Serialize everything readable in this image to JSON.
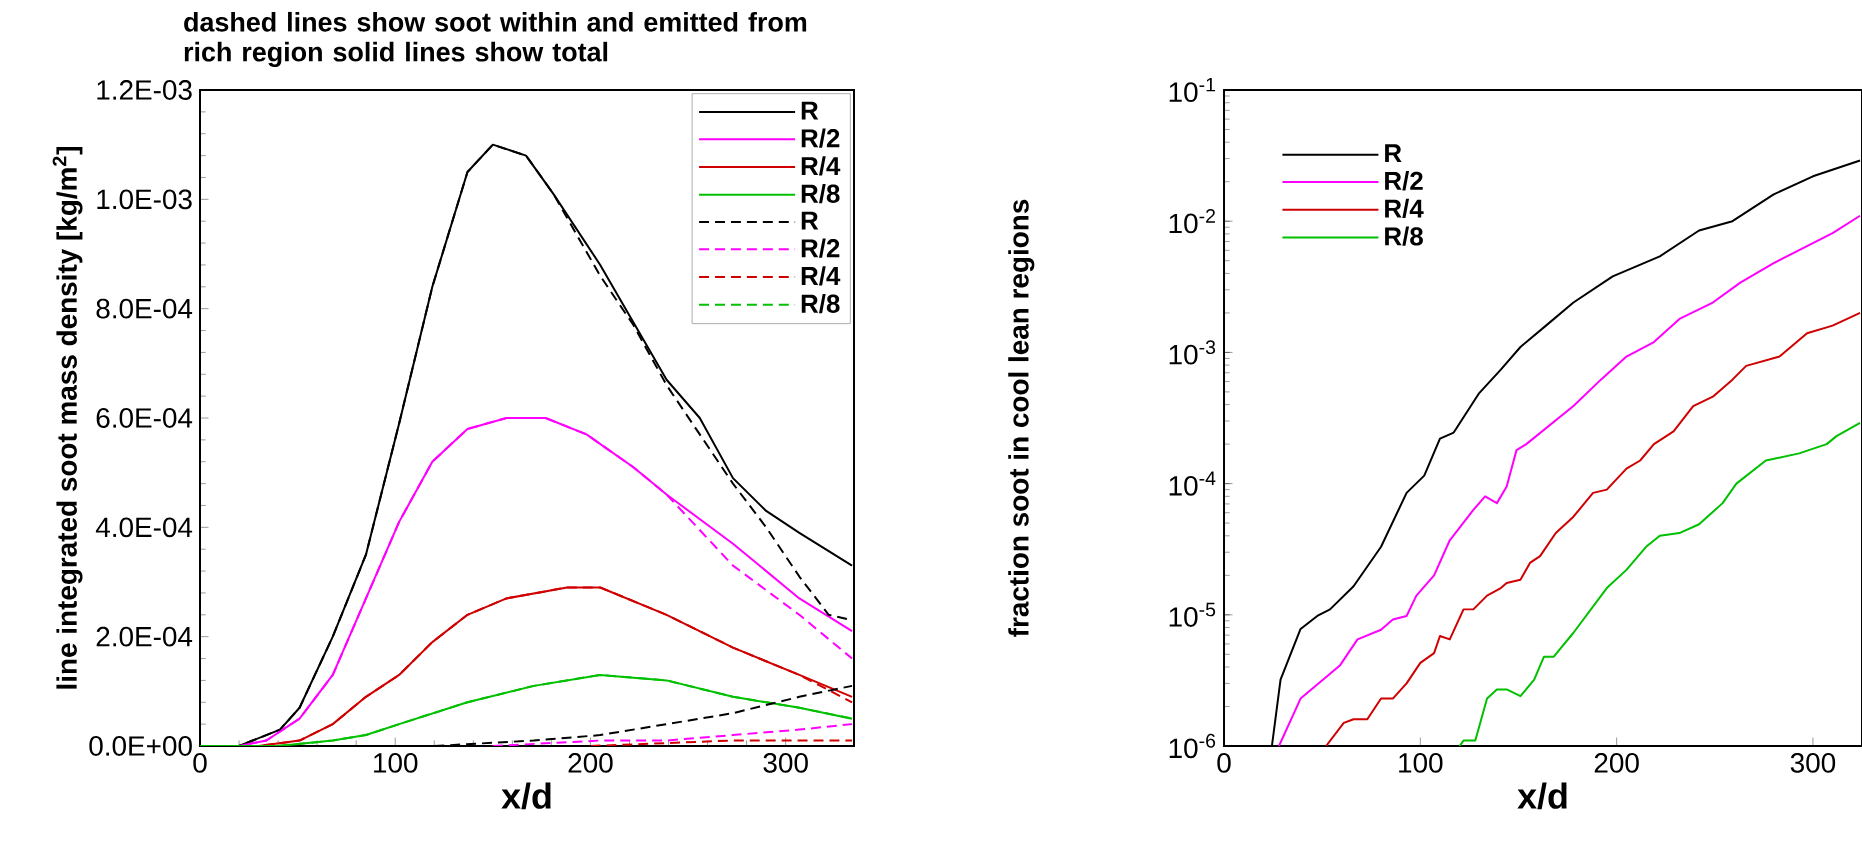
{
  "chart_data": [
    {
      "type": "line",
      "title": "dashed lines show soot  within and emitted from rich region solid lines show total",
      "xlabel": "x/d",
      "ylabel": "line integrated soot mass density [kg/m$^{2}$]",
      "xlim": [
        0,
        335
      ],
      "xticks": [
        0,
        100,
        200,
        300
      ],
      "ylim": [
        0,
        0.0012
      ],
      "yticks": [
        {
          "value": 0,
          "label": "0.0E+00"
        },
        {
          "value": 0.0002,
          "label": "2.0E-04"
        },
        {
          "value": 0.0004,
          "label": "4.0E-04"
        },
        {
          "value": 0.0006,
          "label": "6.0E-04"
        },
        {
          "value": 0.0008,
          "label": "8.0E-04"
        },
        {
          "value": 0.001,
          "label": "1.0E-03"
        },
        {
          "value": 0.0012,
          "label": "1.2E-03"
        }
      ],
      "legend": "top right",
      "series": [
        {
          "name": "R",
          "color": "#000000",
          "line_style": "solid",
          "x": [
            0,
            20,
            27,
            41,
            51,
            68,
            85,
            102,
            119,
            137,
            150,
            167,
            181,
            205,
            239,
            256,
            273,
            290,
            307,
            334
          ],
          "values": [
            0,
            0,
            1e-05,
            3e-05,
            7e-05,
            0.0002,
            0.00035,
            0.00059,
            0.00084,
            0.00105,
            0.0011,
            0.00108,
            0.00101,
            0.00088,
            0.00067,
            0.0006,
            0.00049,
            0.00043,
            0.00039,
            0.00033
          ]
        },
        {
          "name": "R/2",
          "color": "#ff00ff",
          "line_style": "solid",
          "x": [
            0,
            20,
            34,
            51,
            68,
            85,
            102,
            119,
            137,
            157,
            177,
            198,
            222,
            239,
            273,
            307,
            334
          ],
          "values": [
            0,
            0,
            1e-05,
            5e-05,
            0.00013,
            0.00027,
            0.00041,
            0.00052,
            0.00058,
            0.0006,
            0.0006,
            0.00057,
            0.00051,
            0.00046,
            0.00037,
            0.00027,
            0.00021
          ]
        },
        {
          "name": "R/4",
          "color": "#d00000",
          "line_style": "solid",
          "x": [
            0,
            30,
            51,
            68,
            85,
            102,
            119,
            137,
            157,
            188,
            205,
            239,
            273,
            307,
            334
          ],
          "values": [
            0,
            0,
            1e-05,
            4e-05,
            9e-05,
            0.00013,
            0.00019,
            0.00024,
            0.00027,
            0.00029,
            0.00029,
            0.00024,
            0.00018,
            0.00013,
            9e-05
          ]
        },
        {
          "name": "R/8",
          "color": "#00c000",
          "line_style": "solid",
          "x": [
            0,
            40,
            68,
            85,
            102,
            137,
            171,
            205,
            239,
            273,
            307,
            334
          ],
          "values": [
            0,
            0,
            1e-05,
            2e-05,
            4e-05,
            8e-05,
            0.00011,
            0.00013,
            0.00012,
            9e-05,
            7e-05,
            5e-05
          ]
        },
        {
          "name": "R",
          "color": "#000000",
          "line_style": "dashed",
          "x": [
            0,
            20,
            27,
            41,
            51,
            68,
            85,
            102,
            119,
            137,
            150,
            167,
            181,
            205,
            222,
            239,
            256,
            273,
            290,
            307,
            322,
            334
          ],
          "values": [
            0,
            0,
            1e-05,
            3e-05,
            7e-05,
            0.0002,
            0.00035,
            0.00059,
            0.00084,
            0.00105,
            0.0011,
            0.00108,
            0.00101,
            0.00086,
            0.00077,
            0.00066,
            0.00057,
            0.00048,
            0.0004,
            0.00031,
            0.00024,
            0.00023
          ]
        },
        {
          "name": "R/2",
          "color": "#ff00ff",
          "line_style": "dashed",
          "x": [
            0,
            20,
            34,
            51,
            68,
            85,
            102,
            119,
            137,
            157,
            177,
            198,
            222,
            239,
            273,
            307,
            334
          ],
          "values": [
            0,
            0,
            1e-05,
            5e-05,
            0.00013,
            0.00027,
            0.00041,
            0.00052,
            0.00058,
            0.0006,
            0.0006,
            0.00057,
            0.00051,
            0.00046,
            0.00033,
            0.00024,
            0.00016
          ]
        },
        {
          "name": "R/4",
          "color": "#d00000",
          "line_style": "dashed",
          "x": [
            0,
            30,
            51,
            68,
            85,
            102,
            119,
            137,
            157,
            188,
            205,
            239,
            273,
            307,
            334
          ],
          "values": [
            0,
            0,
            1e-05,
            4e-05,
            9e-05,
            0.00013,
            0.00019,
            0.00024,
            0.00027,
            0.00029,
            0.00029,
            0.00024,
            0.00018,
            0.00013,
            8e-05
          ]
        },
        {
          "name": "R/8",
          "color": "#00c000",
          "line_style": "dashed",
          "x": [
            0,
            40,
            68,
            85,
            102,
            137,
            171,
            205,
            239,
            273,
            307,
            334
          ],
          "values": [
            0,
            0,
            1e-05,
            2e-05,
            4e-05,
            8e-05,
            0.00011,
            0.00013,
            0.00012,
            9e-05,
            7e-05,
            5e-05
          ]
        },
        {
          "color": "#000000",
          "line_style": "dashed",
          "x": [
            120,
            171,
            205,
            239,
            273,
            307,
            334
          ],
          "values": [
            0,
            1e-05,
            2e-05,
            4e-05,
            6e-05,
            9e-05,
            0.00011
          ]
        },
        {
          "color": "#ff00ff",
          "line_style": "dashed",
          "x": [
            150,
            205,
            239,
            273,
            307,
            334
          ],
          "values": [
            0,
            1e-05,
            1e-05,
            2e-05,
            3e-05,
            4e-05
          ]
        },
        {
          "color": "#d00000",
          "line_style": "dashed",
          "x": [
            200,
            273,
            307,
            334
          ],
          "values": [
            0,
            1e-05,
            1e-05,
            1e-05
          ]
        }
      ]
    },
    {
      "type": "line",
      "xlabel": "x/d",
      "ylabel": "fraction soot in cool lean regions",
      "log": "y",
      "xlim": [
        0,
        325
      ],
      "xticks": [
        0,
        100,
        200,
        300
      ],
      "ylim": [
        1e-06,
        0.1
      ],
      "yticks": [
        {
          "value": 1e-06,
          "label": "10$^{-6}$"
        },
        {
          "value": 1e-05,
          "label": "10$^{-5}$"
        },
        {
          "value": 0.0001,
          "label": "10$^{-4}$"
        },
        {
          "value": 0.001,
          "label": "10$^{-3}$"
        },
        {
          "value": 0.01,
          "label": "10$^{-2}$"
        },
        {
          "value": 0.1,
          "label": "10$^{-1}$"
        }
      ],
      "legend": "top left",
      "series": [
        {
          "name": "R",
          "color": "#000000",
          "line_style": "solid",
          "x": [
            24.4,
            28.8,
            39,
            47.5,
            54,
            66,
            80,
            93,
            102,
            110,
            117,
            130,
            141,
            151,
            164,
            178,
            198,
            222,
            242,
            259,
            280,
            300,
            324
          ],
          "values": [
            1e-06,
            3.2e-06,
            7.8e-06,
            9.8e-06,
            1.1e-05,
            1.65e-05,
            3.3e-05,
            8.5e-05,
            0.000115,
            0.00022,
            0.000245,
            0.00049,
            0.00074,
            0.0011,
            0.0016,
            0.0024,
            0.0038,
            0.0054,
            0.0085,
            0.01,
            0.016,
            0.022,
            0.029
          ]
        },
        {
          "name": "R/2",
          "color": "#ff00ff",
          "line_style": "solid",
          "x": [
            28,
            39,
            52.5,
            59,
            68,
            80,
            86,
            93,
            98,
            107,
            115,
            127,
            133,
            139,
            144,
            149,
            154,
            178,
            192,
            205,
            219,
            232,
            249,
            263,
            280,
            300,
            310,
            324
          ],
          "values": [
            1e-06,
            2.3e-06,
            3.4e-06,
            4.1e-06,
            6.5e-06,
            7.7e-06,
            9.2e-06,
            9.8e-06,
            1.4e-05,
            2e-05,
            3.7e-05,
            6.3e-05,
            8e-05,
            7.1e-05,
            9.5e-05,
            0.00018,
            0.0002,
            0.00039,
            0.00062,
            0.00093,
            0.0012,
            0.0018,
            0.0024,
            0.0034,
            0.0048,
            0.0068,
            0.0081,
            0.011
          ]
        },
        {
          "name": "R/4",
          "color": "#d00000",
          "line_style": "solid",
          "x": [
            52,
            61,
            66,
            73,
            80,
            86,
            93,
            100,
            107,
            110,
            115,
            122,
            127,
            134,
            141,
            144,
            151,
            156,
            161,
            169,
            178,
            188,
            195,
            205,
            212,
            219,
            229,
            239,
            249,
            259,
            266,
            283,
            297,
            310,
            324
          ],
          "values": [
            1e-06,
            1.5e-06,
            1.6e-06,
            1.6e-06,
            2.3e-06,
            2.3e-06,
            3e-06,
            4.3e-06,
            5.1e-06,
            6.9e-06,
            6.5e-06,
            1.1e-05,
            1.1e-05,
            1.4e-05,
            1.6e-05,
            1.75e-05,
            1.85e-05,
            2.5e-05,
            2.8e-05,
            4.2e-05,
            5.6e-05,
            8.5e-05,
            9e-05,
            0.00013,
            0.00015,
            0.0002,
            0.00025,
            0.00039,
            0.00046,
            0.00062,
            0.00079,
            0.00093,
            0.0014,
            0.0016,
            0.002
          ]
        },
        {
          "name": "R/8",
          "color": "#00c000",
          "line_style": "solid",
          "x": [
            120,
            122,
            125,
            128,
            134,
            139,
            144,
            151,
            158,
            163,
            168,
            178,
            195,
            205,
            215,
            222,
            232,
            242,
            254,
            261,
            276,
            293,
            307,
            312,
            324
          ],
          "values": [
            1e-06,
            1.1e-06,
            1.1e-06,
            1.1e-06,
            2.3e-06,
            2.7e-06,
            2.7e-06,
            2.4e-06,
            3.2e-06,
            4.8e-06,
            4.8e-06,
            7.3e-06,
            1.6e-05,
            2.2e-05,
            3.3e-05,
            4e-05,
            4.2e-05,
            4.9e-05,
            7.1e-05,
            0.0001,
            0.00015,
            0.00017,
            0.0002,
            0.00023,
            0.00029
          ]
        }
      ]
    }
  ]
}
